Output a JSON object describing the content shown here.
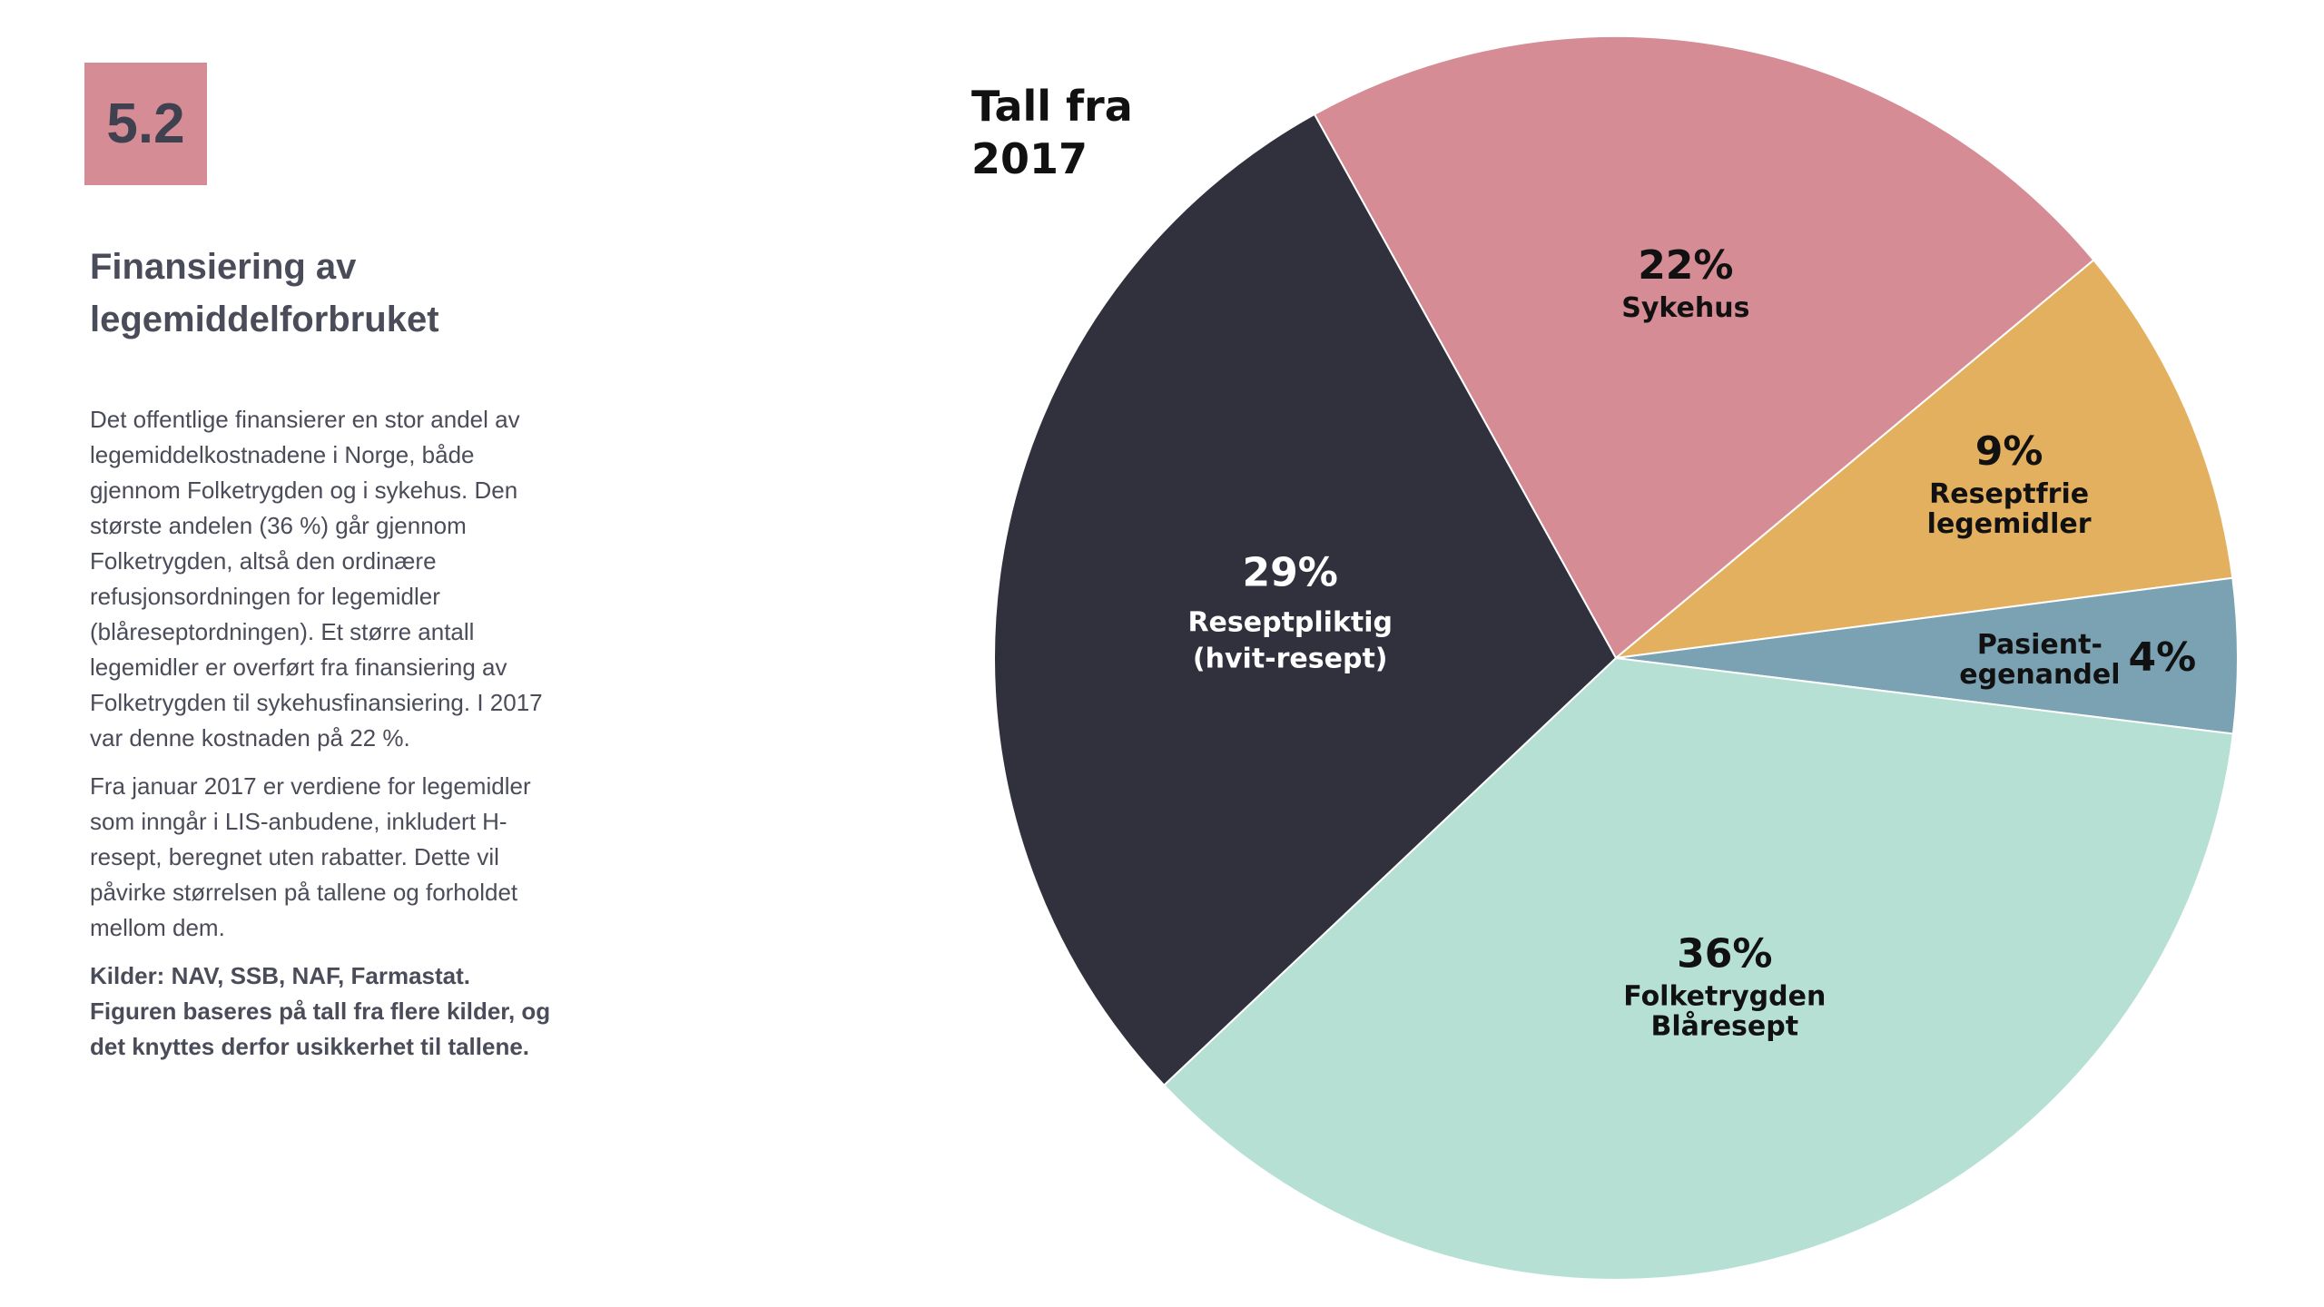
{
  "badge": {
    "label": "5.2",
    "color": "#d68c94"
  },
  "heading": "Finansiering av legemiddelforbruket",
  "paragraphs": [
    "Det offentlige finansierer en stor andel av legemiddelkostnadene i Norge, både gjennom Folketrygden og i sykehus. Den største andelen (36 %) går gjennom Folketrygden, altså den ordinære refusjonsordningen for legemidler (blåreseptordningen). Et større antall legemidler er overført fra finansiering av Folketrygden til sykehusfinansiering. I 2017 var denne kostnaden på 22 %.",
    "Fra januar 2017 er verdiene for legemidler som inngår i LIS-anbudene, inkludert H-resept, beregnet uten rabatter. Dette vil påvirke størrelsen på tallene og forholdet mellom dem."
  ],
  "sources": "Kilder: NAV, SSB, NAF, Farmastat. Figuren baseres på tall fra flere kilder, og det knyttes derfor usikkerhet til tallene.",
  "chart_data": {
    "type": "pie",
    "title_lines": [
      "Tall fra",
      "2017"
    ],
    "unit": "%",
    "start_angle_deg": -29,
    "slices": [
      {
        "label_lines": [
          "Sykehus"
        ],
        "value": 22,
        "color": "#d68c94",
        "text_color": "#111111"
      },
      {
        "label_lines": [
          "Reseptfrie",
          "legemidler"
        ],
        "value": 9,
        "color": "#e3b05f",
        "text_color": "#111111"
      },
      {
        "label_lines": [
          "Pasient-",
          "egenandel"
        ],
        "value": 4,
        "color": "#7aa2b3",
        "text_color": "#111111"
      },
      {
        "label_lines": [
          "Folketrygden",
          "Blåresept"
        ],
        "value": 36,
        "color": "#b6e0d4",
        "text_color": "#111111"
      },
      {
        "label_lines": [
          "Reseptpliktig",
          "(hvit-resept)"
        ],
        "value": 29,
        "color": "#30313d",
        "text_color": "#ffffff"
      }
    ]
  }
}
